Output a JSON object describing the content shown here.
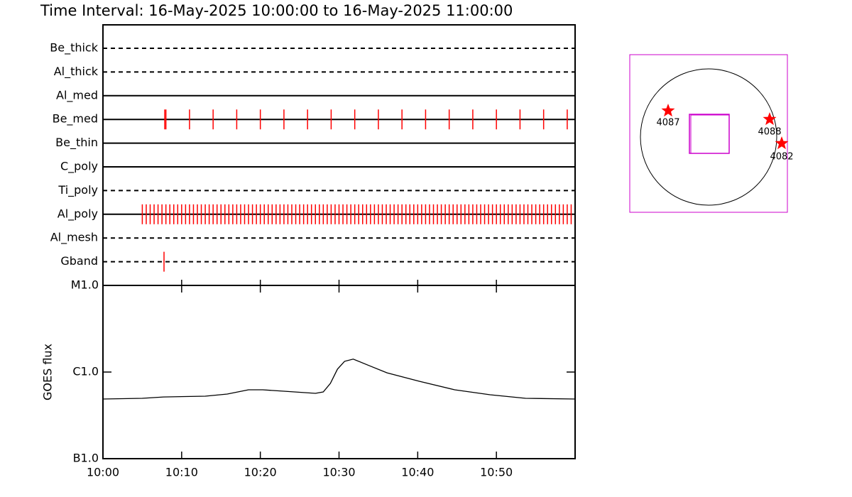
{
  "title": "Time Interval: 16-May-2025 10:00:00 to 16-May-2025 11:00:00",
  "chart_data": [
    {
      "type": "timeline",
      "color": "#ff0000",
      "xlim": [
        0,
        60
      ],
      "rows": [
        {
          "name": "Be_thick",
          "line": "dashed",
          "events": []
        },
        {
          "name": "Al_thick",
          "line": "dashed",
          "events": []
        },
        {
          "name": "Al_med",
          "line": "solid",
          "events": []
        },
        {
          "name": "Be_med",
          "line": "solid",
          "events": [
            7.85,
            8.0,
            11,
            14,
            17,
            20,
            23,
            26,
            29,
            32,
            35,
            38,
            41,
            44,
            47,
            50,
            53,
            56,
            59
          ]
        },
        {
          "name": "Be_thin",
          "line": "solid",
          "events": []
        },
        {
          "name": "C_poly",
          "line": "solid",
          "events": []
        },
        {
          "name": "Ti_poly",
          "line": "dashed",
          "events": []
        },
        {
          "name": "Al_poly",
          "line": "solid",
          "events": [
            5,
            5.5,
            6,
            6.5,
            7,
            7.5,
            8,
            8.5,
            9,
            9.5,
            10,
            10.5,
            11,
            11.5,
            12,
            12.5,
            13,
            13.5,
            14,
            14.5,
            15,
            15.5,
            16,
            16.5,
            17,
            17.5,
            18,
            18.5,
            19,
            19.5,
            20,
            20.5,
            21,
            21.5,
            22,
            22.5,
            23,
            23.5,
            24,
            24.5,
            25,
            25.5,
            26,
            26.5,
            27,
            27.5,
            28,
            28.5,
            29,
            29.5,
            30,
            30.5,
            31,
            31.5,
            32,
            32.5,
            33,
            33.5,
            34,
            34.5,
            35,
            35.5,
            36,
            36.5,
            37,
            37.5,
            38,
            38.5,
            39,
            39.5,
            40,
            40.5,
            41,
            41.5,
            42,
            42.5,
            43,
            43.5,
            44,
            44.5,
            45,
            45.5,
            46,
            46.5,
            47,
            47.5,
            48,
            48.5,
            49,
            49.5,
            50,
            50.5,
            51,
            51.5,
            52,
            52.5,
            53,
            53.5,
            54,
            54.5,
            55,
            55.5,
            56,
            56.5,
            57,
            57.5,
            58,
            58.5,
            59,
            59.5
          ]
        },
        {
          "name": "Al_mesh",
          "line": "dashed",
          "events": []
        },
        {
          "name": "Gband",
          "line": "dashed",
          "events": [
            7.76
          ]
        }
      ]
    },
    {
      "type": "line",
      "ylabel": "GOES flux",
      "log_y": true,
      "x": [
        0,
        5,
        7.7,
        13,
        15.8,
        18.5,
        20.3,
        23,
        27,
        28,
        28.9,
        29.8,
        30.7,
        31.8,
        33.8,
        36.1,
        40.2,
        44.7,
        49.2,
        53.7,
        60
      ],
      "series": [
        {
          "color": "#000000",
          "values": [
            4.88e-07,
            4.97e-07,
            5.16e-07,
            5.26e-07,
            5.57e-07,
            6.24e-07,
            6.24e-07,
            6.01e-07,
            5.68e-07,
            5.89e-07,
            7.39e-07,
            1.08e-06,
            1.33e-06,
            1.41e-06,
            1.19e-06,
            9.8e-07,
            7.82e-07,
            6.24e-07,
            5.47e-07,
            4.97e-07,
            4.88e-07
          ]
        }
      ],
      "xlim": [
        0,
        60
      ],
      "xticks": [
        {
          "value": 0,
          "label": "10:00"
        },
        {
          "value": 10,
          "label": "10:10"
        },
        {
          "value": 20,
          "label": "10:20"
        },
        {
          "value": 30,
          "label": "10:30"
        },
        {
          "value": 40,
          "label": "10:40"
        },
        {
          "value": 50,
          "label": "10:50"
        }
      ],
      "ylim": [
        1e-07,
        1e-05
      ],
      "yticks": [
        {
          "value": 1e-05,
          "label": "M1.0"
        },
        {
          "value": 1e-06,
          "label": "C1.0"
        },
        {
          "value": 1e-07,
          "label": "B1.0"
        }
      ]
    }
  ],
  "map": {
    "regions": [
      "4087",
      "4088",
      "4082"
    ]
  }
}
